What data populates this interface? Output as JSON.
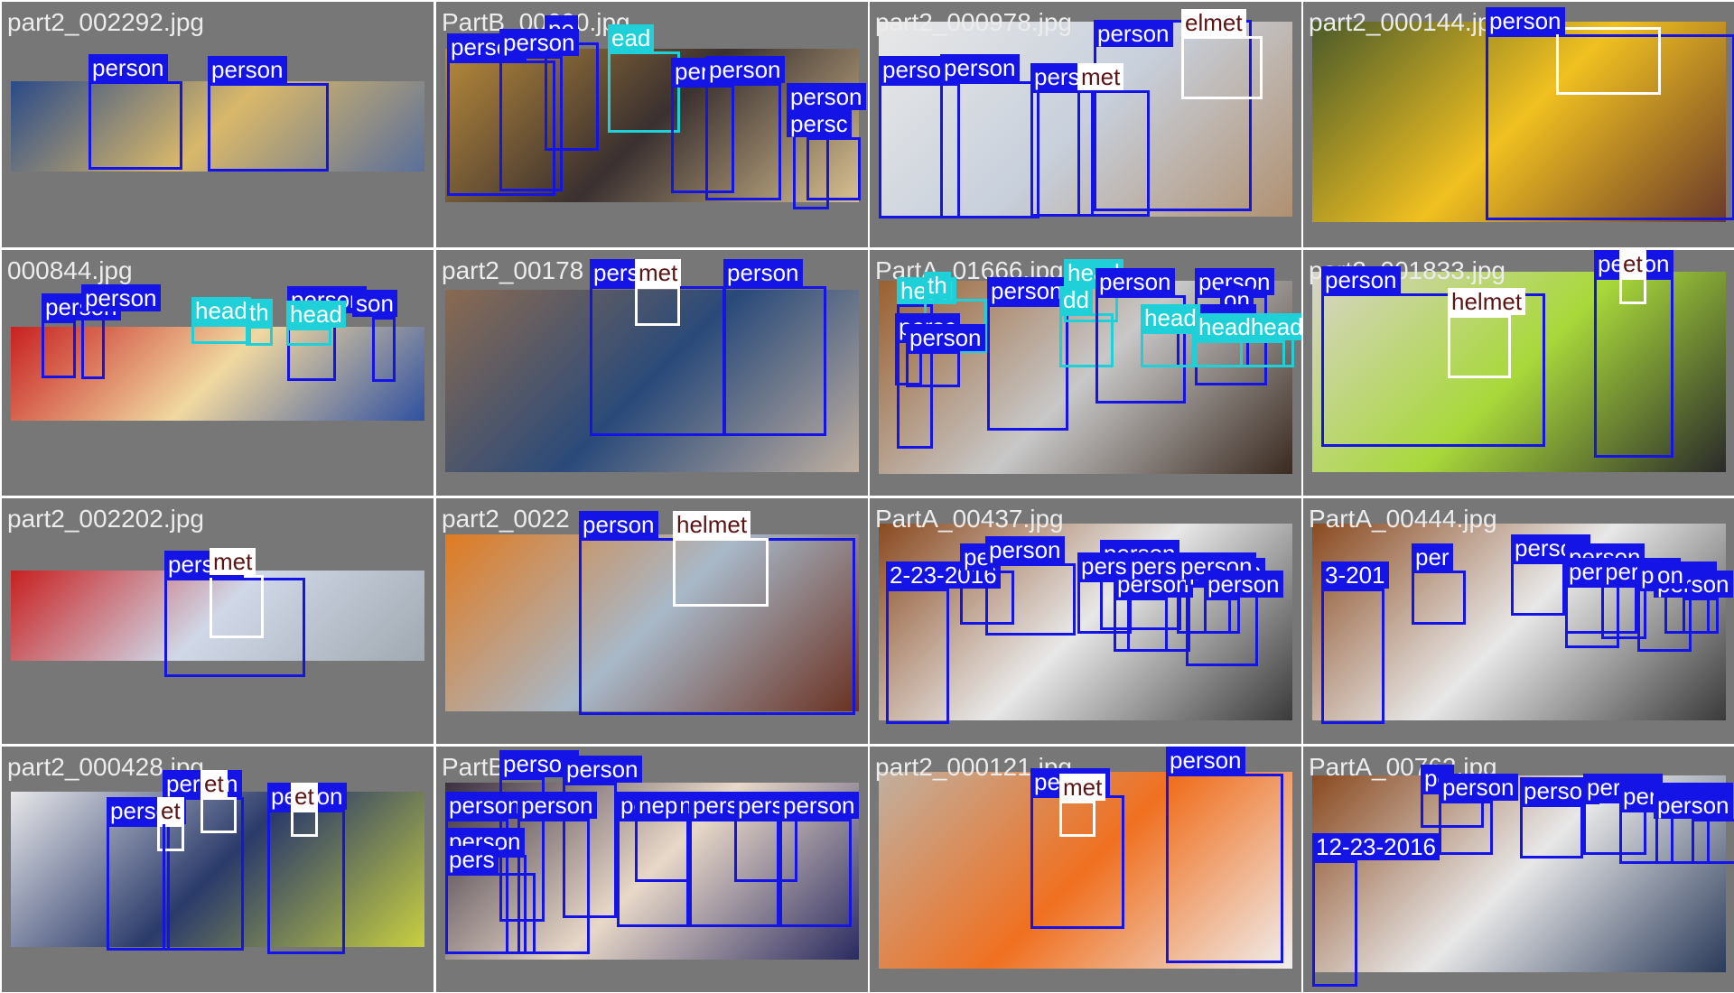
{
  "legend": {
    "person": {
      "color": "#1414e6",
      "text_color": "#ffffff"
    },
    "helmet": {
      "color": "#ffffff",
      "text_color": "#5a1414"
    },
    "head": {
      "color": "#20d0d8",
      "text_color": "#ffffff"
    }
  },
  "tiles": [
    {
      "filename": "part2_002292.jpg",
      "photo_colors": [
        "#2a4a88",
        "#d9b86a",
        "#5a6f9a"
      ],
      "labels": [
        "person",
        "person"
      ]
    },
    {
      "filename": "PartB_00690.jpg",
      "photo_colors": [
        "#b88a3a",
        "#3a3030",
        "#d8c090"
      ],
      "labels": [
        "person",
        "pe",
        "person",
        "ead",
        "person",
        "person",
        "person",
        "persc"
      ]
    },
    {
      "filename": "part2_000978.jpg",
      "photo_colors": [
        "#e8e8e8",
        "#c8d0dc",
        "#b09070"
      ],
      "labels": [
        "person",
        "elmet",
        "person",
        "person",
        "person",
        "met"
      ]
    },
    {
      "filename": "part2_000144.jpg",
      "photo_colors": [
        "#4a5a2a",
        "#f0c020",
        "#6a3a2a"
      ],
      "labels": [
        "person"
      ]
    },
    {
      "filename": "000844.jpg",
      "photo_colors": [
        "#c82020",
        "#f0d8a0",
        "#3050a0"
      ],
      "labels": [
        "person",
        "person",
        "person",
        "son",
        "head",
        "th",
        "head"
      ]
    },
    {
      "filename": "part2_00178",
      "photo_colors": [
        "#8a6a50",
        "#2a4a7a",
        "#c0b0a0"
      ],
      "labels": [
        "person",
        "met",
        "person"
      ]
    },
    {
      "filename": "PartA_01666.jpg",
      "photo_colors": [
        "#9a6030",
        "#c8c8c8",
        "#3a2a20"
      ],
      "labels": [
        "head",
        "th",
        "person",
        "head",
        "dd",
        "person",
        "person",
        "on",
        "person",
        "persc",
        "person",
        "head",
        "headhead"
      ]
    },
    {
      "filename": "part2_001833.jpg",
      "photo_colors": [
        "#d8d4c8",
        "#a8d83a",
        "#2a2a2a"
      ],
      "labels": [
        "person",
        "person",
        "helmet",
        "et"
      ]
    },
    {
      "filename": "part2_002202.jpg",
      "photo_colors": [
        "#c82020",
        "#d0d8e8",
        "#a0a8b0"
      ],
      "labels": [
        "person",
        "met"
      ]
    },
    {
      "filename": "part2_0022",
      "photo_colors": [
        "#e07a20",
        "#a8b8c8",
        "#6a3020"
      ],
      "labels": [
        "person",
        "helmet"
      ]
    },
    {
      "filename": "PartA_00437.jpg",
      "photo_colors": [
        "#8a4a20",
        "#e8e8e8",
        "#3a3a3a"
      ],
      "labels": [
        "2-23-2016",
        "pe",
        "person",
        "person",
        "person",
        "pers",
        "person",
        "person",
        "person",
        "person"
      ]
    },
    {
      "filename": "PartA_00444.jpg",
      "photo_colors": [
        "#8a4a20",
        "#e8e8e8",
        "#3a3a3a"
      ],
      "labels": [
        "3-201",
        "per",
        "person",
        "person",
        "person",
        "per",
        "person",
        "person",
        "on"
      ]
    },
    {
      "filename": "part2_000428.jpg",
      "photo_colors": [
        "#e8e8ea",
        "#2a3a6a",
        "#c8d040"
      ],
      "labels": [
        "person",
        "et",
        "person",
        "et",
        "person",
        "et"
      ]
    },
    {
      "filename": "PartB",
      "photo_colors": [
        "#3a3040",
        "#e8d8c8",
        "#2a2a60"
      ],
      "labels": [
        "person",
        "person",
        "person",
        "person",
        "person",
        "pers",
        "person",
        "nep",
        "person",
        "person",
        "person"
      ]
    },
    {
      "filename": "part2_000121.jpg",
      "photo_colors": [
        "#c0b0a0",
        "#f07020",
        "#f0f0f0"
      ],
      "labels": [
        "person",
        "met",
        "person"
      ]
    },
    {
      "filename": "PartA_00762.jpg",
      "photo_colors": [
        "#8a4a20",
        "#e8e8e8",
        "#2a3a5a"
      ],
      "labels": [
        "12-23-2016",
        "pe",
        "person",
        "person",
        "person",
        "person",
        "person",
        "person"
      ]
    }
  ]
}
